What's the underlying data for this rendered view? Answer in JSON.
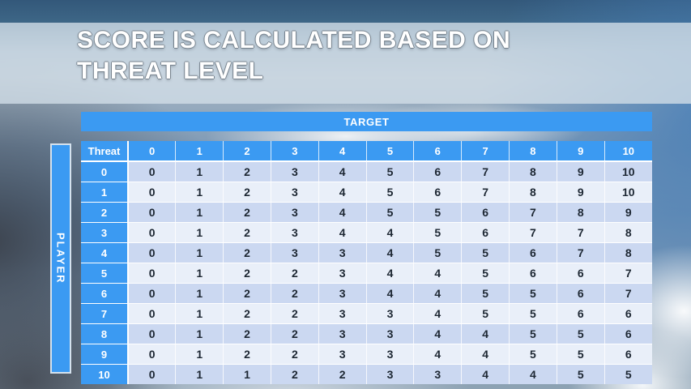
{
  "slide": {
    "title_line1": "SCORE IS CALCULATED BASED ON",
    "title_line2": "THREAT LEVEL"
  },
  "chart_data": {
    "type": "table",
    "column_group_label": "TARGET",
    "row_group_label": "PLAYER",
    "corner_header": "Threat",
    "column_headers": [
      "0",
      "1",
      "2",
      "3",
      "4",
      "5",
      "6",
      "7",
      "8",
      "9",
      "10"
    ],
    "row_headers": [
      "0",
      "1",
      "2",
      "3",
      "4",
      "5",
      "6",
      "7",
      "8",
      "9",
      "10"
    ],
    "rows": [
      [
        0,
        1,
        2,
        3,
        4,
        5,
        6,
        7,
        8,
        9,
        10
      ],
      [
        0,
        1,
        2,
        3,
        4,
        5,
        6,
        7,
        8,
        9,
        10
      ],
      [
        0,
        1,
        2,
        3,
        4,
        5,
        5,
        6,
        7,
        8,
        9
      ],
      [
        0,
        1,
        2,
        3,
        4,
        4,
        5,
        6,
        7,
        7,
        8
      ],
      [
        0,
        1,
        2,
        3,
        3,
        4,
        5,
        5,
        6,
        7,
        8
      ],
      [
        0,
        1,
        2,
        2,
        3,
        4,
        4,
        5,
        6,
        6,
        7
      ],
      [
        0,
        1,
        2,
        2,
        3,
        4,
        4,
        5,
        5,
        6,
        7
      ],
      [
        0,
        1,
        2,
        2,
        3,
        3,
        4,
        5,
        5,
        6,
        6
      ],
      [
        0,
        1,
        2,
        2,
        3,
        3,
        4,
        4,
        5,
        5,
        6
      ],
      [
        0,
        1,
        2,
        2,
        3,
        3,
        4,
        4,
        5,
        5,
        6
      ],
      [
        0,
        1,
        1,
        2,
        2,
        3,
        3,
        4,
        4,
        5,
        5
      ]
    ]
  },
  "colors": {
    "accent_blue": "#3B9AF2",
    "row_even": "#CBD8F1",
    "row_odd": "#E9EFF9",
    "cell_text": "#1D2733",
    "header_text": "#FFFFFF"
  }
}
